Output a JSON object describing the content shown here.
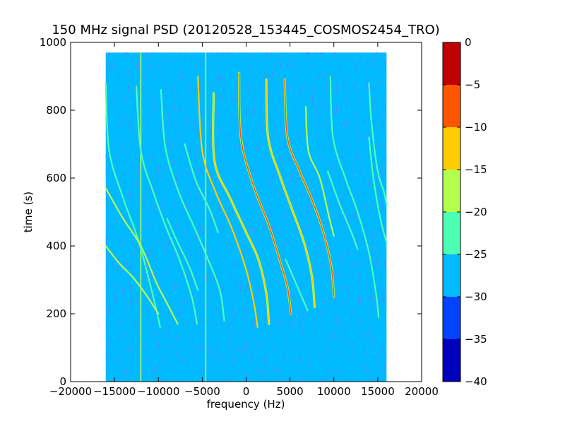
{
  "chart_data": {
    "type": "heatmap",
    "title": "150 MHz signal PSD (20120528_153445_COSMOS2454_TRO)",
    "xlabel": "frequency (Hz)",
    "ylabel": "time (s)",
    "xlim": [
      -20000,
      20000
    ],
    "ylim": [
      0,
      1000
    ],
    "xticks": [
      -20000,
      -15000,
      -10000,
      -5000,
      0,
      5000,
      10000,
      15000,
      20000
    ],
    "xtick_labels": [
      "−20000",
      "−15000",
      "−10000",
      "−5000",
      "0",
      "5000",
      "10000",
      "15000",
      "20000"
    ],
    "yticks": [
      0,
      200,
      400,
      600,
      800,
      1000
    ],
    "ytick_labels": [
      "0",
      "200",
      "400",
      "600",
      "800",
      "1000"
    ],
    "data_extent": {
      "freq_hz": [
        -16000,
        16000
      ],
      "time_s": [
        0,
        970
      ]
    },
    "background_level_db": -27.5,
    "colorbar": {
      "levels": [
        -40,
        -35,
        -30,
        -25,
        -20,
        -15,
        -10,
        -5,
        0
      ],
      "tick_labels": [
        "−40",
        "−35",
        "−30",
        "−25",
        "−20",
        "−15",
        "−10",
        "−5",
        "0"
      ],
      "colors": [
        "#0000bf",
        "#0044ff",
        "#00bbff",
        "#4dffb3",
        "#b3ff4d",
        "#ffcc00",
        "#ff5500",
        "#c00000"
      ]
    },
    "vertical_lines": [
      {
        "freq_hz": -12000,
        "time_s": [
          0,
          970
        ],
        "level_db": -20
      },
      {
        "freq_hz": -4600,
        "time_s": [
          0,
          970
        ],
        "level_db": -20
      }
    ],
    "traces": [
      {
        "name": "",
        "level_db": -22,
        "points": [
          [
            -16000,
            880
          ],
          [
            -15600,
            680
          ],
          [
            -14000,
            540
          ],
          [
            -12200,
            410
          ],
          [
            -10400,
            230
          ],
          [
            -9800,
            160
          ]
        ]
      },
      {
        "name": "",
        "level_db": -20,
        "points": [
          [
            -16000,
            570
          ],
          [
            -14000,
            480
          ],
          [
            -12000,
            400
          ],
          [
            -10200,
            290
          ],
          [
            -9000,
            230
          ],
          [
            -7800,
            170
          ]
        ]
      },
      {
        "name": "",
        "level_db": -20,
        "points": [
          [
            -16000,
            400
          ],
          [
            -14500,
            350
          ],
          [
            -13000,
            310
          ],
          [
            -11500,
            260
          ],
          [
            -10000,
            200
          ]
        ]
      },
      {
        "name": "",
        "level_db": -22,
        "points": [
          [
            -12500,
            870
          ],
          [
            -12000,
            680
          ],
          [
            -10600,
            560
          ],
          [
            -9200,
            460
          ],
          [
            -7600,
            360
          ],
          [
            -6200,
            250
          ],
          [
            -5600,
            170
          ]
        ]
      },
      {
        "name": "",
        "level_db": -22,
        "points": [
          [
            -9700,
            860
          ],
          [
            -9200,
            690
          ],
          [
            -7700,
            560
          ],
          [
            -6000,
            460
          ],
          [
            -4500,
            370
          ],
          [
            -3000,
            270
          ],
          [
            -2500,
            180
          ]
        ]
      },
      {
        "name": "",
        "level_db": -24,
        "points": [
          [
            -7000,
            700
          ],
          [
            -5700,
            590
          ],
          [
            -4200,
            510
          ],
          [
            -3200,
            440
          ]
        ]
      },
      {
        "name": "",
        "level_db": -24,
        "points": [
          [
            -9000,
            480
          ],
          [
            -7800,
            410
          ],
          [
            -6500,
            340
          ],
          [
            -5500,
            270
          ]
        ]
      },
      {
        "name": "",
        "level_db": -15,
        "points": [
          [
            -5500,
            900
          ],
          [
            -5000,
            680
          ],
          [
            -3500,
            560
          ],
          [
            -1600,
            450
          ],
          [
            0,
            330
          ],
          [
            900,
            230
          ],
          [
            1300,
            160
          ]
        ]
      },
      {
        "name": "",
        "level_db": -12,
        "points": [
          [
            -3700,
            850
          ],
          [
            -3600,
            650
          ],
          [
            -1800,
            540
          ],
          [
            0,
            440
          ],
          [
            1400,
            360
          ],
          [
            2300,
            260
          ],
          [
            2600,
            170
          ]
        ]
      },
      {
        "name": "",
        "level_db": -8,
        "points": [
          [
            -800,
            910
          ],
          [
            -600,
            720
          ],
          [
            800,
            580
          ],
          [
            2600,
            460
          ],
          [
            3800,
            360
          ],
          [
            4700,
            280
          ],
          [
            5100,
            200
          ]
        ]
      },
      {
        "name": "",
        "level_db": -12,
        "points": [
          [
            2300,
            890
          ],
          [
            2500,
            720
          ],
          [
            3800,
            610
          ],
          [
            5200,
            510
          ],
          [
            6600,
            410
          ],
          [
            7500,
            310
          ],
          [
            7800,
            220
          ]
        ]
      },
      {
        "name": "",
        "level_db": -10,
        "points": [
          [
            4400,
            890
          ],
          [
            4700,
            720
          ],
          [
            6100,
            620
          ],
          [
            7600,
            530
          ],
          [
            8800,
            440
          ],
          [
            9700,
            340
          ],
          [
            10000,
            250
          ]
        ]
      },
      {
        "name": "",
        "level_db": -18,
        "points": [
          [
            6800,
            810
          ],
          [
            7100,
            680
          ],
          [
            8400,
            600
          ],
          [
            9500,
            480
          ],
          [
            10000,
            430
          ]
        ]
      },
      {
        "name": "",
        "level_db": -22,
        "points": [
          [
            9600,
            900
          ],
          [
            9900,
            720
          ],
          [
            11300,
            600
          ],
          [
            12700,
            500
          ],
          [
            14000,
            380
          ],
          [
            14800,
            260
          ],
          [
            15100,
            190
          ]
        ]
      },
      {
        "name": "",
        "level_db": -22,
        "points": [
          [
            14000,
            880
          ],
          [
            14300,
            760
          ],
          [
            15000,
            620
          ],
          [
            15700,
            560
          ],
          [
            16000,
            520
          ]
        ]
      },
      {
        "name": "",
        "level_db": -22,
        "points": [
          [
            14000,
            720
          ],
          [
            14500,
            600
          ],
          [
            15300,
            480
          ],
          [
            16000,
            410
          ]
        ]
      },
      {
        "name": "",
        "level_db": -24,
        "points": [
          [
            9300,
            620
          ],
          [
            10700,
            520
          ],
          [
            12000,
            440
          ],
          [
            12700,
            390
          ]
        ]
      },
      {
        "name": "",
        "level_db": -24,
        "points": [
          [
            4500,
            360
          ],
          [
            6000,
            270
          ],
          [
            7000,
            210
          ]
        ]
      }
    ]
  }
}
